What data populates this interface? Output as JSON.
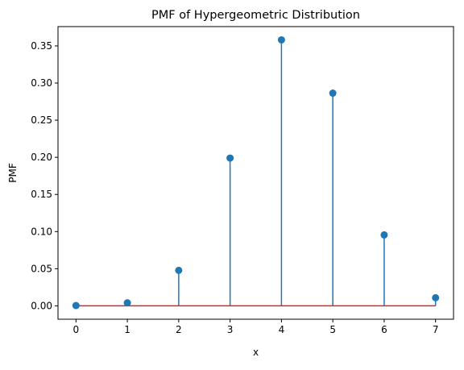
{
  "chart_data": {
    "type": "stem",
    "title": "PMF of Hypergeometric Distribution",
    "xlabel": "x",
    "ylabel": "PMF",
    "x": [
      0,
      1,
      2,
      3,
      4,
      5,
      6,
      7
    ],
    "values": [
      0.0004,
      0.0041,
      0.0478,
      0.199,
      0.3581,
      0.2864,
      0.0955,
      0.0109
    ],
    "xlim": [
      -0.35,
      7.35
    ],
    "ylim": [
      -0.018,
      0.376
    ],
    "x_ticks": [
      0,
      1,
      2,
      3,
      4,
      5,
      6,
      7
    ],
    "y_ticks": [
      0.0,
      0.05,
      0.1,
      0.15,
      0.2,
      0.25,
      0.3,
      0.35
    ],
    "y_tick_labels": [
      "0.00",
      "0.05",
      "0.10",
      "0.15",
      "0.20",
      "0.25",
      "0.30",
      "0.35"
    ],
    "grid": false,
    "colors": {
      "stem": "#1f77b4",
      "marker": "#1f77b4",
      "baseline": "#d62728"
    }
  }
}
